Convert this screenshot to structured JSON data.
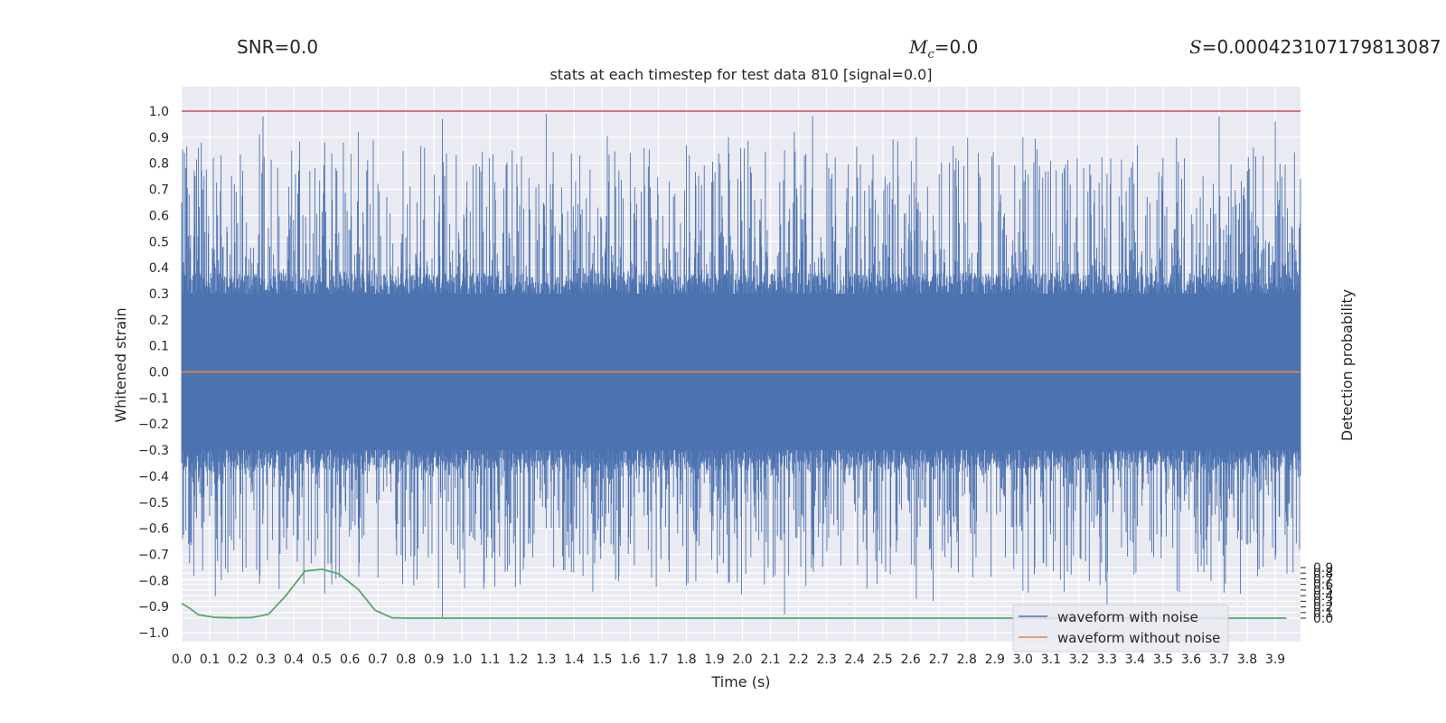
{
  "header": {
    "snr_text": "SNR=0.0",
    "mc_symbol": "M",
    "mc_subscript": "c",
    "mc_value": "=0.0",
    "s_symbol": "S",
    "s_value": "=0.000423107179813087"
  },
  "chart_data": {
    "type": "line",
    "title": "stats at each timestep for test data 810 [signal=0.0]",
    "xlabel": "Time (s)",
    "ylabel": "Whitened strain",
    "y2label": "Detection probability",
    "xlim": [
      0.0,
      3.99
    ],
    "ylim": [
      -1.05,
      1.05
    ],
    "y2lim": [
      -0.045,
      0.945
    ],
    "grid": true,
    "legend_position": "lower-right",
    "x_ticks": [
      "0.0",
      "0.1",
      "0.2",
      "0.3",
      "0.4",
      "0.5",
      "0.6",
      "0.7",
      "0.8",
      "0.9",
      "1.0",
      "1.1",
      "1.2",
      "1.3",
      "1.4",
      "1.5",
      "1.6",
      "1.7",
      "1.8",
      "1.9",
      "2.0",
      "2.1",
      "2.2",
      "2.3",
      "2.4",
      "2.5",
      "2.6",
      "2.7",
      "2.8",
      "2.9",
      "3.0",
      "3.1",
      "3.2",
      "3.3",
      "3.4",
      "3.5",
      "3.6",
      "3.7",
      "3.8",
      "3.9"
    ],
    "y_ticks": [
      "1.0",
      "0.9",
      "0.8",
      "0.7",
      "0.6",
      "0.5",
      "0.4",
      "0.3",
      "0.2",
      "0.1",
      "0.0",
      "−0.1",
      "−0.2",
      "−0.3",
      "−0.4",
      "−0.5",
      "−0.6",
      "−0.7",
      "−0.8",
      "−0.9",
      "−1.0"
    ],
    "y2_ticks": [
      "0.9",
      "0.8",
      "0.7",
      "0.6",
      "0.5",
      "0.4",
      "0.3",
      "0.2",
      "0.1",
      "0.0"
    ],
    "legend": [
      "waveform with noise",
      "waveform without noise"
    ],
    "colors": {
      "noisy": "#4c72b0",
      "clean": "#dd8452",
      "probability": "#55a868",
      "threshold": "#c44e52",
      "plot_bg": "#eaeaf2",
      "grid": "#ffffff"
    },
    "series": [
      {
        "name": "waveform with noise",
        "note_values": "dense whitened noise; sampled envelope peaks (x, max, min)",
        "peaks": [
          [
            0.0,
            0.65,
            -0.35
          ],
          [
            0.06,
            0.86,
            -0.42
          ],
          [
            0.07,
            0.88,
            -0.48
          ],
          [
            0.14,
            0.83,
            -0.55
          ],
          [
            0.12,
            0.4,
            -0.86
          ],
          [
            0.29,
            0.98,
            -0.55
          ],
          [
            0.42,
            0.81,
            -0.55
          ],
          [
            0.51,
            0.88,
            -0.85
          ],
          [
            0.63,
            0.92,
            -0.6
          ],
          [
            0.7,
            0.6,
            -0.79
          ],
          [
            0.93,
            0.97,
            -0.94
          ],
          [
            1.3,
            0.99,
            -0.6
          ],
          [
            1.42,
            0.83,
            -0.7
          ],
          [
            1.6,
            0.84,
            -0.66
          ],
          [
            1.8,
            0.87,
            -0.82
          ],
          [
            1.95,
            0.9,
            -0.81
          ],
          [
            2.15,
            0.85,
            -0.93
          ],
          [
            2.25,
            0.98,
            -0.7
          ],
          [
            2.62,
            0.9,
            -0.87
          ],
          [
            2.68,
            0.6,
            -0.88
          ],
          [
            2.77,
            0.81,
            -0.77
          ],
          [
            3.0,
            0.9,
            -0.84
          ],
          [
            3.3,
            0.76,
            -0.9
          ],
          [
            3.55,
            0.65,
            -0.84
          ],
          [
            3.7,
            0.98,
            -0.65
          ],
          [
            3.9,
            0.96,
            -0.72
          ],
          [
            3.99,
            0.74,
            -0.4
          ]
        ]
      },
      {
        "name": "waveform without noise",
        "x": [
          0.0,
          3.99
        ],
        "y": [
          0.0,
          0.0
        ]
      },
      {
        "name": "detection probability",
        "axis": "right",
        "x": [
          0.0,
          0.025,
          0.06,
          0.12,
          0.18,
          0.25,
          0.31,
          0.37,
          0.44,
          0.5,
          0.56,
          0.63,
          0.69,
          0.75,
          0.81,
          0.87,
          0.93,
          1.0,
          2.0,
          3.0,
          3.94
        ],
        "y": [
          0.26,
          0.19,
          0.06,
          0.013,
          0.007,
          0.012,
          0.07,
          0.39,
          0.84,
          0.87,
          0.79,
          0.51,
          0.14,
          0.007,
          0.0,
          0.0,
          0.0,
          0.0,
          0.0,
          0.0,
          0.0
        ]
      },
      {
        "name": "threshold",
        "x": [
          0.0,
          3.99
        ],
        "y": [
          1.0,
          1.0
        ]
      }
    ]
  }
}
